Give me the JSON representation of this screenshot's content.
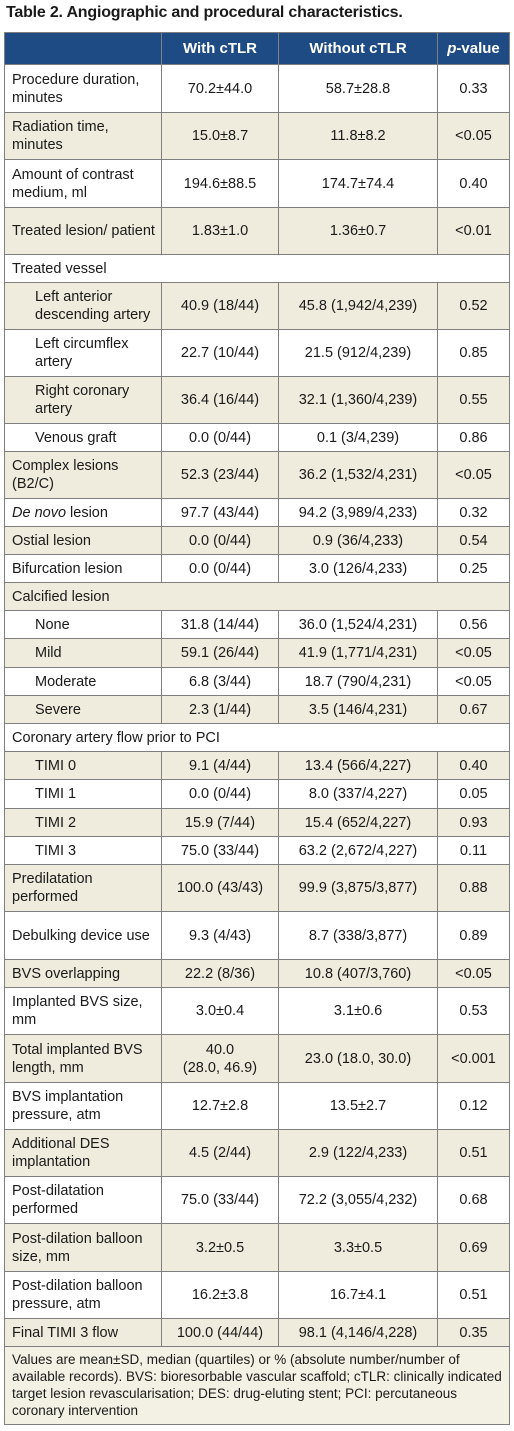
{
  "title": "Table 2. Angiographic and procedural characteristics.",
  "header": {
    "col1": "With cTLR",
    "col2": "Without cTLR",
    "col3_italic": "p",
    "col3_rest": "-value"
  },
  "rows": [
    {
      "label": "Procedure duration, minutes",
      "a": "70.2±44.0",
      "b": "58.7±28.8",
      "p": "0.33"
    },
    {
      "label": "Radiation time, minutes",
      "a": "15.0±8.7",
      "b": "11.8±8.2",
      "p": "<0.05"
    },
    {
      "label": "Amount of contrast medium, ml",
      "a": "194.6±88.5",
      "b": "174.7±74.4",
      "p": "0.40"
    },
    {
      "label": "Treated lesion/ patient",
      "a": "1.83±1.0",
      "b": "1.36±0.7",
      "p": "<0.01"
    },
    {
      "label": "Treated vessel"
    },
    {
      "label": "Left anterior descending artery",
      "a": "40.9 (18/44)",
      "b": "45.8 (1,942/4,239)",
      "p": "0.52"
    },
    {
      "label": "Left circumflex artery",
      "a": "22.7 (10/44)",
      "b": "21.5 (912/4,239)",
      "p": "0.85"
    },
    {
      "label": "Right coronary artery",
      "a": "36.4 (16/44)",
      "b": "32.1 (1,360/4,239)",
      "p": "0.55"
    },
    {
      "label": "Venous graft",
      "a": "0.0 (0/44)",
      "b": "0.1 (3/4,239)",
      "p": "0.86"
    },
    {
      "label": "Complex lesions (B2/C)",
      "a": "52.3 (23/44)",
      "b": "36.2 (1,532/4,231)",
      "p": "<0.05"
    },
    {
      "label_italic": "De novo",
      "label_rest": " lesion",
      "a": "97.7 (43/44)",
      "b": "94.2 (3,989/4,233)",
      "p": "0.32"
    },
    {
      "label": "Ostial lesion",
      "a": "0.0 (0/44)",
      "b": "0.9 (36/4,233)",
      "p": "0.54"
    },
    {
      "label": "Bifurcation lesion",
      "a": "0.0 (0/44)",
      "b": "3.0 (126/4,233)",
      "p": "0.25"
    },
    {
      "label": "Calcified lesion"
    },
    {
      "label": "None",
      "a": "31.8 (14/44)",
      "b": "36.0 (1,524/4,231)",
      "p": "0.56"
    },
    {
      "label": "Mild",
      "a": "59.1 (26/44)",
      "b": "41.9 (1,771/4,231)",
      "p": "<0.05"
    },
    {
      "label": "Moderate",
      "a": "6.8 (3/44)",
      "b": "18.7 (790/4,231)",
      "p": "<0.05"
    },
    {
      "label": "Severe",
      "a": "2.3 (1/44)",
      "b": "3.5 (146/4,231)",
      "p": "0.67"
    },
    {
      "label": "Coronary artery flow prior to PCI"
    },
    {
      "label": "TIMI 0",
      "a": "9.1 (4/44)",
      "b": "13.4 (566/4,227)",
      "p": "0.40"
    },
    {
      "label": "TIMI 1",
      "a": "0.0 (0/44)",
      "b": "8.0 (337/4,227)",
      "p": "0.05"
    },
    {
      "label": "TIMI 2",
      "a": "15.9 (7/44)",
      "b": "15.4 (652/4,227)",
      "p": "0.93"
    },
    {
      "label": "TIMI 3",
      "a": "75.0 (33/44)",
      "b": "63.2 (2,672/4,227)",
      "p": "0.11"
    },
    {
      "label": "Predilatation performed",
      "a": "100.0 (43/43)",
      "b": "99.9 (3,875/3,877)",
      "p": "0.88"
    },
    {
      "label": "Debulking device use",
      "a": "9.3 (4/43)",
      "b": "8.7 (338/3,877)",
      "p": "0.89"
    },
    {
      "label": "BVS overlapping",
      "a": "22.2 (8/36)",
      "b": "10.8 (407/3,760)",
      "p": "<0.05"
    },
    {
      "label": "Implanted BVS size, mm",
      "a": "3.0±0.4",
      "b": "3.1±0.6",
      "p": "0.53"
    },
    {
      "label": "Total implanted BVS length, mm",
      "a1": "40.0",
      "a2": "(28.0, 46.9)",
      "b": "23.0 (18.0, 30.0)",
      "p": "<0.001"
    },
    {
      "label": "BVS implantation pressure, atm",
      "a": "12.7±2.8",
      "b": "13.5±2.7",
      "p": "0.12"
    },
    {
      "label": "Additional DES implantation",
      "a": "4.5 (2/44)",
      "b": "2.9 (122/4,233)",
      "p": "0.51"
    },
    {
      "label": "Post-dilatation performed",
      "a": "75.0 (33/44)",
      "b": "72.2 (3,055/4,232)",
      "p": "0.68"
    },
    {
      "label": "Post-dilation balloon size, mm",
      "a": "3.2±0.5",
      "b": "3.3±0.5",
      "p": "0.69"
    },
    {
      "label": "Post-dilation balloon pressure, atm",
      "a": "16.2±3.8",
      "b": "16.7±4.1",
      "p": "0.51"
    },
    {
      "label": "Final TIMI 3 flow",
      "a": "100.0 (44/44)",
      "b": "98.1 (4,146/4,228)",
      "p": "0.35"
    }
  ],
  "footnote": "Values are mean±SD, median (quartiles) or % (absolute number/number of available records). BVS: bioresorbable vascular scaffold; cTLR: clinically indicated target lesion revascularisation; DES: drug-eluting stent; PCI: percutaneous coronary intervention"
}
